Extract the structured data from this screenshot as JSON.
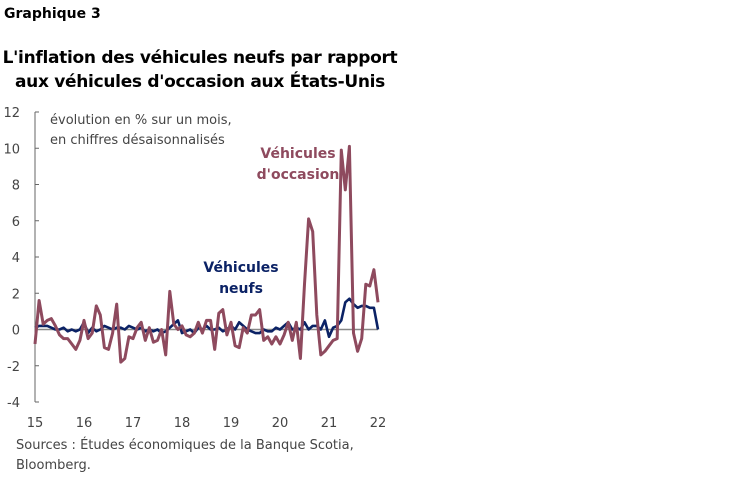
{
  "header": {
    "exhibit": "Graphique 3",
    "title_line1": "L'inflation des véhicules neufs par rapport",
    "title_line2": "aux véhicules d'occasion aux États-Unis"
  },
  "footer": {
    "sources_line1": "Sources : Études économiques de la Banque Scotia,",
    "sources_line2": "Bloomberg."
  },
  "chart_data": {
    "type": "line",
    "title": "L'inflation des véhicules neufs par rapport aux véhicules d'occasion aux États-Unis",
    "ylabel_line1": "évolution en % sur un mois,",
    "ylabel_line2": "en chiffres désaisonnalisés",
    "ylim": [
      -4,
      12
    ],
    "yticks": [
      "12",
      "10",
      "8",
      "6",
      "4",
      "2",
      "0",
      "-2",
      "-4"
    ],
    "xticks": [
      "15",
      "16",
      "17",
      "18",
      "19",
      "20",
      "21",
      "22"
    ],
    "x_start": "2015-01",
    "x_end": "2022-01",
    "frequency": "monthly",
    "grid": false,
    "series": [
      {
        "name_line1": "Véhicules",
        "name_line2": "d'occasion",
        "color": "#8e4a5e",
        "values": [
          -0.8,
          1.6,
          0.3,
          0.5,
          0.6,
          0.2,
          -0.3,
          -0.5,
          -0.5,
          -0.8,
          -1.1,
          -0.6,
          0.5,
          -0.5,
          -0.2,
          1.3,
          0.8,
          -1.0,
          -1.1,
          -0.2,
          1.4,
          -1.8,
          -1.6,
          -0.4,
          -0.5,
          0.1,
          0.4,
          -0.6,
          0.1,
          -0.7,
          -0.6,
          0.0,
          -1.4,
          2.1,
          0.3,
          0.0,
          0.2,
          -0.3,
          -0.4,
          -0.2,
          0.4,
          -0.2,
          0.5,
          0.5,
          -1.1,
          0.9,
          1.1,
          -0.3,
          0.4,
          -0.9,
          -1.0,
          0.1,
          -0.2,
          0.8,
          0.8,
          1.1,
          -0.6,
          -0.4,
          -0.8,
          -0.4,
          -0.8,
          -0.3,
          0.4,
          -0.6,
          0.4,
          -1.6,
          2.5,
          6.1,
          5.4,
          0.8,
          -1.4,
          -1.2,
          -0.9,
          -0.6,
          -0.5,
          9.9,
          7.7,
          10.1,
          -0.2,
          -1.2,
          -0.5,
          2.5,
          2.4,
          3.3,
          1.5
        ]
      },
      {
        "name_line1": "Véhicules",
        "name_line2": "neufs",
        "color": "#0b2265",
        "values": [
          0.1,
          0.2,
          0.2,
          0.2,
          0.1,
          0.0,
          0.0,
          0.1,
          -0.1,
          0.0,
          -0.1,
          0.0,
          0.4,
          -0.2,
          0.1,
          -0.1,
          0.0,
          0.2,
          0.1,
          0.0,
          0.1,
          0.1,
          0.0,
          0.2,
          0.1,
          0.0,
          0.1,
          -0.1,
          0.0,
          -0.1,
          0.0,
          -0.2,
          -0.1,
          0.1,
          0.3,
          0.5,
          -0.2,
          -0.1,
          0.0,
          -0.2,
          0.1,
          0.0,
          0.2,
          0.0,
          0.0,
          0.1,
          -0.1,
          0.0,
          0.2,
          0.0,
          0.4,
          0.2,
          0.0,
          -0.1,
          -0.2,
          -0.2,
          0.0,
          -0.1,
          -0.1,
          0.1,
          0.0,
          0.2,
          0.4,
          0.0,
          0.1,
          0.0,
          0.4,
          0.0,
          0.2,
          0.2,
          0.0,
          0.5,
          -0.4,
          0.1,
          0.2,
          0.5,
          1.5,
          1.7,
          1.4,
          1.2,
          1.3,
          1.3,
          1.2,
          1.2,
          0.0
        ]
      }
    ]
  }
}
